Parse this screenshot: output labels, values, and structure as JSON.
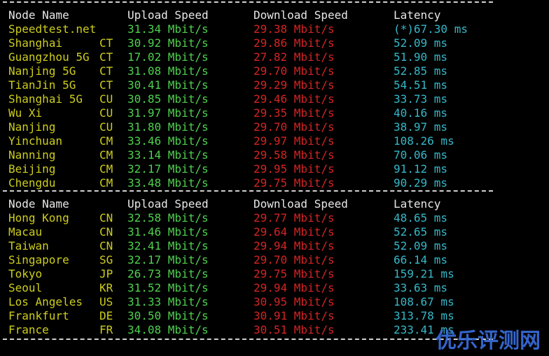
{
  "tables": [
    {
      "header": [
        "Node Name",
        "Upload Speed",
        "Download Speed",
        "Latency"
      ],
      "rows": [
        {
          "name": "Speedtest.net",
          "loc": null,
          "upload": "31.34 Mbit/s",
          "download": "29.38 Mbit/s",
          "latency": "(*)67.30 ms"
        },
        {
          "name": "Shanghai",
          "loc": "CT",
          "upload": "30.92 Mbit/s",
          "download": "29.86 Mbit/s",
          "latency": "52.09 ms"
        },
        {
          "name": "Guangzhou 5G",
          "loc": "CT",
          "upload": "17.02 Mbit/s",
          "download": "27.82 Mbit/s",
          "latency": "51.90 ms"
        },
        {
          "name": "Nanjing 5G",
          "loc": "CT",
          "upload": "31.08 Mbit/s",
          "download": "29.70 Mbit/s",
          "latency": "52.85 ms"
        },
        {
          "name": "TianJin 5G",
          "loc": "CT",
          "upload": "30.41 Mbit/s",
          "download": "29.29 Mbit/s",
          "latency": "54.51 ms"
        },
        {
          "name": "Shanghai 5G",
          "loc": "CU",
          "upload": "30.85 Mbit/s",
          "download": "29.46 Mbit/s",
          "latency": "33.73 ms"
        },
        {
          "name": "Wu Xi",
          "loc": "CU",
          "upload": "31.97 Mbit/s",
          "download": "29.35 Mbit/s",
          "latency": "40.16 ms"
        },
        {
          "name": "Nanjing",
          "loc": "CU",
          "upload": "31.80 Mbit/s",
          "download": "29.70 Mbit/s",
          "latency": "38.97 ms"
        },
        {
          "name": "Yinchuan",
          "loc": "CM",
          "upload": "33.46 Mbit/s",
          "download": "29.97 Mbit/s",
          "latency": "108.26 ms"
        },
        {
          "name": "Nanning",
          "loc": "CM",
          "upload": "33.14 Mbit/s",
          "download": "29.58 Mbit/s",
          "latency": "70.06 ms"
        },
        {
          "name": "Beijing",
          "loc": "CM",
          "upload": "32.17 Mbit/s",
          "download": "29.95 Mbit/s",
          "latency": "91.12 ms"
        },
        {
          "name": "Chengdu",
          "loc": "CM",
          "upload": "33.48 Mbit/s",
          "download": "29.75 Mbit/s",
          "latency": "90.29 ms"
        }
      ]
    },
    {
      "header": [
        "Node Name",
        "Upload Speed",
        "Download Speed",
        "Latency"
      ],
      "rows": [
        {
          "name": "Hong Kong",
          "loc": "CN",
          "upload": "32.58 Mbit/s",
          "download": "29.77 Mbit/s",
          "latency": "48.65 ms"
        },
        {
          "name": "Macau",
          "loc": "CN",
          "upload": "31.46 Mbit/s",
          "download": "29.64 Mbit/s",
          "latency": "52.65 ms"
        },
        {
          "name": "Taiwan",
          "loc": "CN",
          "upload": "32.41 Mbit/s",
          "download": "29.94 Mbit/s",
          "latency": "52.09 ms"
        },
        {
          "name": "Singapore",
          "loc": "SG",
          "upload": "32.17 Mbit/s",
          "download": "29.70 Mbit/s",
          "latency": "66.14 ms"
        },
        {
          "name": "Tokyo",
          "loc": "JP",
          "upload": "26.73 Mbit/s",
          "download": "29.75 Mbit/s",
          "latency": "159.21 ms"
        },
        {
          "name": "Seoul",
          "loc": "KR",
          "upload": "31.52 Mbit/s",
          "download": "29.94 Mbit/s",
          "latency": "33.63 ms"
        },
        {
          "name": "Los Angeles",
          "loc": "US",
          "upload": "31.33 Mbit/s",
          "download": "30.95 Mbit/s",
          "latency": "108.67 ms"
        },
        {
          "name": "Frankfurt",
          "loc": "DE",
          "upload": "30.50 Mbit/s",
          "download": "30.91 Mbit/s",
          "latency": "313.78 ms"
        },
        {
          "name": "France",
          "loc": "FR",
          "upload": "34.08 Mbit/s",
          "download": "30.51 Mbit/s",
          "latency": "233.41 ms"
        }
      ]
    }
  ],
  "watermark": "优乐评测网"
}
